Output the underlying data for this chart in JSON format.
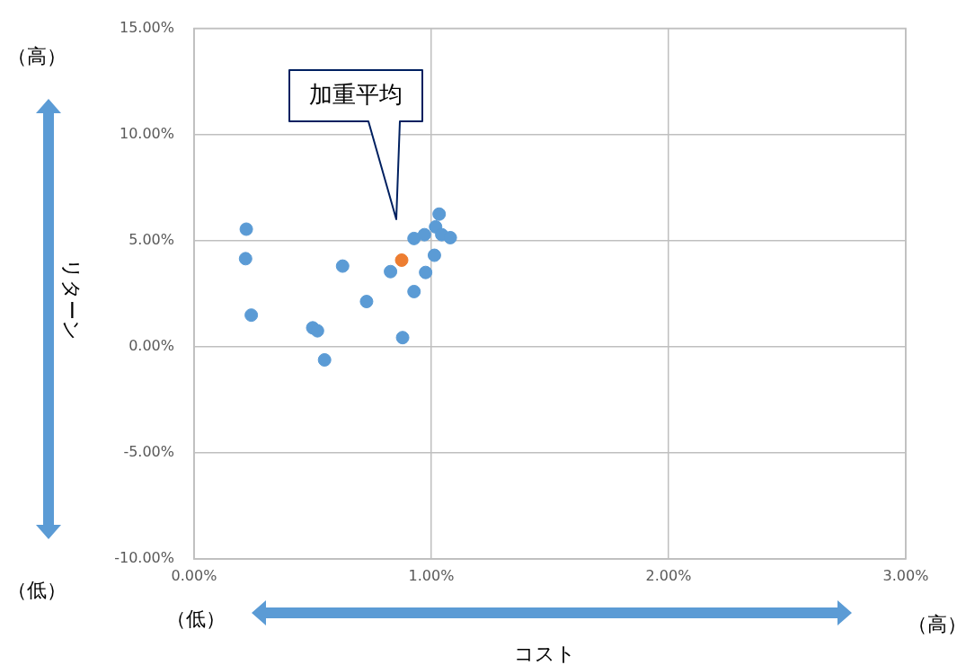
{
  "chart_data": {
    "type": "scatter",
    "xlabel": "コスト",
    "ylabel": "リターン",
    "xlim": [
      0,
      3
    ],
    "xticks": [
      {
        "value": 0,
        "label": "0.00%"
      },
      {
        "value": 1,
        "label": "1.00%"
      },
      {
        "value": 2,
        "label": "2.00%"
      },
      {
        "value": 3,
        "label": "3.00%"
      }
    ],
    "ylim": [
      -10,
      15
    ],
    "yticks": [
      {
        "value": -10,
        "label": "-10.00%"
      },
      {
        "value": -5,
        "label": "-5.00%"
      },
      {
        "value": 0,
        "label": "0.00%"
      },
      {
        "value": 5,
        "label": "5.00%"
      },
      {
        "value": 10,
        "label": "10.00%"
      },
      {
        "value": 15,
        "label": "15.00%"
      }
    ],
    "grid": true,
    "legend": false,
    "marker": "circle",
    "series": [
      {
        "color": "#5b9bd5",
        "x": [
          0.22,
          0.217,
          0.241,
          0.5,
          0.52,
          0.55,
          0.626,
          0.727,
          0.828,
          0.879,
          0.927,
          0.927,
          0.971,
          0.976,
          1.013,
          1.018,
          1.033,
          1.044,
          1.08
        ],
        "values": [
          5.54,
          4.15,
          1.49,
          0.89,
          0.75,
          -0.62,
          3.8,
          2.13,
          3.54,
          0.43,
          2.6,
          5.1,
          5.28,
          3.5,
          4.31,
          5.65,
          6.25,
          5.28,
          5.14
        ]
      },
      {
        "color": "#ed7d31",
        "x": [
          0.875
        ],
        "values": [
          4.08
        ]
      }
    ],
    "annotations": [
      "（高）",
      "（低）",
      "（低）",
      "（高）",
      "加重平均"
    ]
  }
}
